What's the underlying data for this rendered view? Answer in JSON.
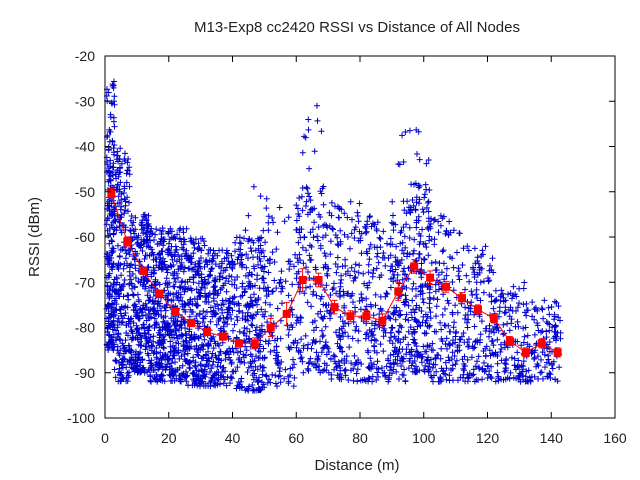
{
  "chart_data": {
    "type": "scatter",
    "title": "M13-Exp8 cc2420 RSSI vs Distance of All Nodes",
    "xlabel": "Distance (m)",
    "ylabel": "RSSI (dBm)",
    "xlim": [
      0,
      160
    ],
    "ylim": [
      -100,
      -20
    ],
    "xticks": [
      0,
      20,
      40,
      60,
      80,
      100,
      120,
      140,
      160
    ],
    "yticks": [
      -100,
      -90,
      -80,
      -70,
      -60,
      -50,
      -40,
      -30,
      -20
    ],
    "grid": false,
    "legend": "none",
    "colors": {
      "scatter": "#0000cc",
      "mean": "#ff0000"
    },
    "series": [
      {
        "kind": "scatter-clusters",
        "marker": "plus",
        "color": "#0000cc",
        "clusters": [
          {
            "x": [
              0.5,
              3
            ],
            "y": [
              -85,
              -25
            ],
            "n": 220
          },
          {
            "x": [
              3,
              8
            ],
            "y": [
              -92,
              -40
            ],
            "n": 240
          },
          {
            "x": [
              8,
              14
            ],
            "y": [
              -90,
              -55
            ],
            "n": 260
          },
          {
            "x": [
              14,
              20
            ],
            "y": [
              -92,
              -58
            ],
            "n": 260
          },
          {
            "x": [
              20,
              26
            ],
            "y": [
              -92,
              -58
            ],
            "n": 240
          },
          {
            "x": [
              26,
              32
            ],
            "y": [
              -93,
              -60
            ],
            "n": 220
          },
          {
            "x": [
              32,
              40
            ],
            "y": [
              -93,
              -62
            ],
            "n": 220
          },
          {
            "x": [
              40,
              50
            ],
            "y": [
              -94,
              -60
            ],
            "n": 220
          },
          {
            "x": [
              40,
              55
            ],
            "y": [
              -88,
              -48
            ],
            "n": 60
          },
          {
            "x": [
              50,
              60
            ],
            "y": [
              -93,
              -55
            ],
            "n": 110
          },
          {
            "x": [
              60,
              70
            ],
            "y": [
              -90,
              -48
            ],
            "n": 180
          },
          {
            "x": [
              70,
              80
            ],
            "y": [
              -92,
              -52
            ],
            "n": 170
          },
          {
            "x": [
              80,
              90
            ],
            "y": [
              -92,
              -55
            ],
            "n": 170
          },
          {
            "x": [
              90,
              96
            ],
            "y": [
              -92,
              -52
            ],
            "n": 140
          },
          {
            "x": [
              96,
              102
            ],
            "y": [
              -90,
              -48
            ],
            "n": 180
          },
          {
            "x": [
              102,
              112
            ],
            "y": [
              -92,
              -55
            ],
            "n": 160
          },
          {
            "x": [
              112,
              122
            ],
            "y": [
              -92,
              -62
            ],
            "n": 150
          },
          {
            "x": [
              122,
              132
            ],
            "y": [
              -92,
              -70
            ],
            "n": 130
          },
          {
            "x": [
              132,
              143
            ],
            "y": [
              -92,
              -74
            ],
            "n": 120
          },
          {
            "x": [
              62,
              68
            ],
            "y": [
              -45,
              -31
            ],
            "n": 10
          },
          {
            "x": [
              92,
              102
            ],
            "y": [
              -44,
              -36
            ],
            "n": 12
          }
        ]
      },
      {
        "kind": "mean",
        "marker": "square",
        "color": "#ff0000",
        "x": [
          2,
          7,
          12,
          17,
          22,
          27,
          32,
          37,
          42,
          47,
          52,
          57,
          62,
          67,
          72,
          77,
          82,
          87,
          92,
          97,
          102,
          107,
          112,
          117,
          122,
          127,
          132,
          137,
          142
        ],
        "y": [
          -50.5,
          -61,
          -67.5,
          -72.5,
          -76.5,
          -79,
          -81,
          -82,
          -83.5,
          -83.5,
          -80,
          -77,
          -69.5,
          -69.5,
          -75.5,
          -77.5,
          -77.5,
          -78.5,
          -72,
          -66.5,
          -69,
          -71,
          -73.5,
          -76,
          -78,
          -83,
          -85.5,
          -83.5,
          -85.5
        ],
        "err": [
          1.2,
          1.0,
          0.8,
          0.8,
          0.8,
          0.8,
          0.8,
          0.8,
          0.8,
          1.2,
          2.0,
          2.5,
          2.5,
          1.5,
          1.5,
          1.2,
          1.2,
          1.5,
          2.0,
          1.5,
          1.5,
          1.2,
          1.2,
          1.0,
          1.0,
          1.0,
          1.0,
          1.0,
          1.0
        ]
      }
    ]
  }
}
